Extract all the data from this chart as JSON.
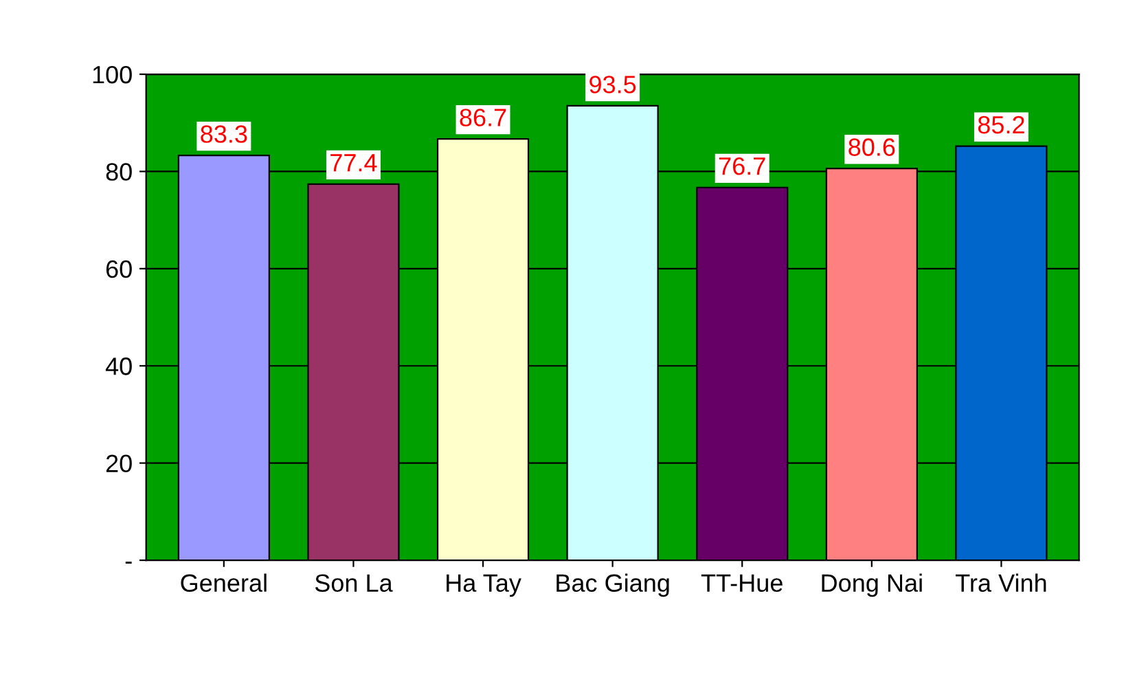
{
  "chart_data": {
    "type": "bar",
    "categories": [
      "General",
      "Son La",
      "Ha Tay",
      "Bac Giang",
      "TT-Hue",
      "Dong Nai",
      "Tra Vinh"
    ],
    "values": [
      83.3,
      77.4,
      86.7,
      93.5,
      76.7,
      80.6,
      85.2
    ],
    "colors": [
      "#9999ff",
      "#993366",
      "#ffffcc",
      "#ccffff",
      "#660066",
      "#ff8080",
      "#0066cc"
    ],
    "ylim": [
      0,
      100
    ],
    "yticks": [
      {
        "value": 0,
        "label": "-"
      },
      20,
      40,
      60,
      80,
      100
    ],
    "grid": "y",
    "data_labels": true
  }
}
